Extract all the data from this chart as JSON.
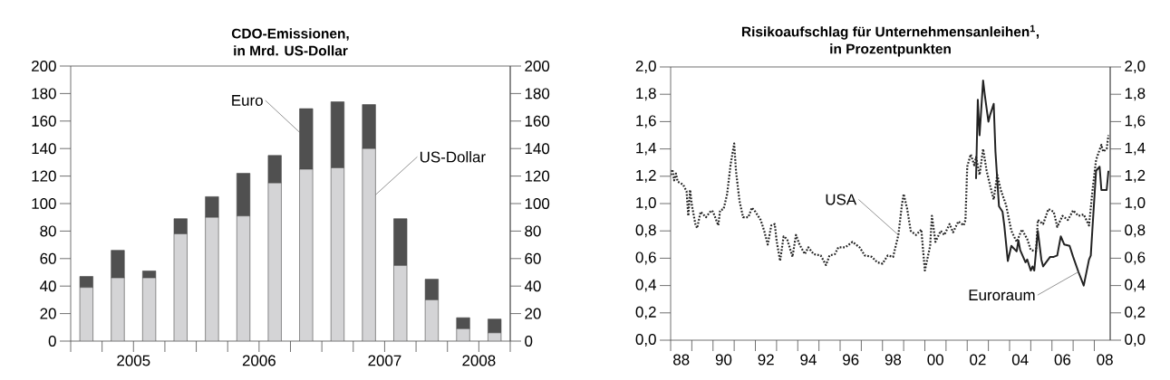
{
  "chart_data": [
    {
      "type": "bar",
      "title": "CDO-Emissionen,",
      "subtitle": "in Mrd. US-Dollar",
      "stacked": true,
      "x": [
        2005.125,
        2005.375,
        2005.625,
        2005.875,
        2006.125,
        2006.375,
        2006.625,
        2006.875,
        2007.125,
        2007.375,
        2007.625,
        2007.875,
        2008.125,
        2008.375
      ],
      "xlim": [
        2005,
        2008.5
      ],
      "xticks": [
        {
          "value": 2005,
          "label": null
        },
        {
          "value": 2005.25,
          "label": null
        },
        {
          "value": 2005.5,
          "label": "2005"
        },
        {
          "value": 2005.75,
          "label": null
        },
        {
          "value": 2006,
          "label": null
        },
        {
          "value": 2006.25,
          "label": null
        },
        {
          "value": 2006.5,
          "label": "2006"
        },
        {
          "value": 2006.75,
          "label": null
        },
        {
          "value": 2007,
          "label": null
        },
        {
          "value": 2007.25,
          "label": null
        },
        {
          "value": 2007.5,
          "label": "2007"
        },
        {
          "value": 2007.75,
          "label": null
        },
        {
          "value": 2008,
          "label": null
        },
        {
          "value": 2008.25,
          "label": "2008"
        },
        {
          "value": 2008.5,
          "label": null
        }
      ],
      "ylim": [
        0,
        200
      ],
      "yticks": [
        0,
        20,
        40,
        60,
        80,
        100,
        120,
        140,
        160,
        180,
        200
      ],
      "y2lim": [
        0,
        200
      ],
      "y2ticks": [
        0,
        20,
        40,
        60,
        80,
        100,
        120,
        140,
        160,
        180,
        200
      ],
      "series": [
        {
          "name": "US-Dollar",
          "color": "#d4d4d6",
          "values": [
            39,
            46,
            46,
            78,
            90,
            91,
            115,
            125,
            126,
            140,
            55,
            30,
            9,
            6
          ]
        },
        {
          "name": "Euro",
          "color": "#505050",
          "values": [
            8,
            20,
            5,
            11,
            15,
            31,
            20,
            44,
            48,
            32,
            34,
            15,
            8,
            10
          ]
        }
      ]
    },
    {
      "type": "line",
      "title": "Risikoaufschlag für Unternehmensanleihen$^{1}$,",
      "subtitle": "in Prozentpunkten",
      "xlim": [
        "1988-01",
        "2008-10"
      ],
      "xticks": [
        {
          "value": "1988-01",
          "label": null
        },
        {
          "value": "1988-07",
          "label": "88"
        },
        {
          "value": "1989-01",
          "label": null
        },
        {
          "value": "1990-01",
          "label": null
        },
        {
          "value": "1990-07",
          "label": "90"
        },
        {
          "value": "1991-01",
          "label": null
        },
        {
          "value": "1992-01",
          "label": null
        },
        {
          "value": "1992-07",
          "label": "92"
        },
        {
          "value": "1993-01",
          "label": null
        },
        {
          "value": "1994-01",
          "label": null
        },
        {
          "value": "1994-07",
          "label": "94"
        },
        {
          "value": "1995-01",
          "label": null
        },
        {
          "value": "1996-01",
          "label": null
        },
        {
          "value": "1996-07",
          "label": "96"
        },
        {
          "value": "1997-01",
          "label": null
        },
        {
          "value": "1998-01",
          "label": null
        },
        {
          "value": "1998-07",
          "label": "98"
        },
        {
          "value": "1999-01",
          "label": null
        },
        {
          "value": "2000-01",
          "label": null
        },
        {
          "value": "2000-07",
          "label": "00"
        },
        {
          "value": "2001-01",
          "label": null
        },
        {
          "value": "2002-01",
          "label": null
        },
        {
          "value": "2002-07",
          "label": "02"
        },
        {
          "value": "2003-01",
          "label": null
        },
        {
          "value": "2004-01",
          "label": null
        },
        {
          "value": "2004-07",
          "label": "04"
        },
        {
          "value": "2005-01",
          "label": null
        },
        {
          "value": "2006-01",
          "label": null
        },
        {
          "value": "2006-07",
          "label": "06"
        },
        {
          "value": "2007-01",
          "label": null
        },
        {
          "value": "2008-01",
          "label": null
        },
        {
          "value": "2008-07",
          "label": "08"
        }
      ],
      "ylim": [
        0,
        2
      ],
      "yticks": [
        {
          "value": 0,
          "label": "0,0"
        },
        {
          "value": 0.2,
          "label": "0,2"
        },
        {
          "value": 0.4,
          "label": "0,4"
        },
        {
          "value": 0.6,
          "label": "0,6"
        },
        {
          "value": 0.8,
          "label": "0,8"
        },
        {
          "value": 1.0,
          "label": "1,0"
        },
        {
          "value": 1.2,
          "label": "1,2"
        },
        {
          "value": 1.4,
          "label": "1,4"
        },
        {
          "value": 1.6,
          "label": "1,6"
        },
        {
          "value": 1.8,
          "label": "1,8"
        },
        {
          "value": 2.0,
          "label": "2,0"
        }
      ],
      "y2lim": [
        0,
        2
      ],
      "y2ticks": [
        {
          "value": 0,
          "label": "0,0"
        },
        {
          "value": 0.2,
          "label": "0,2"
        },
        {
          "value": 0.4,
          "label": "0,4"
        },
        {
          "value": 0.6,
          "label": "0,6"
        },
        {
          "value": 0.8,
          "label": "0,8"
        },
        {
          "value": 1.0,
          "label": "1,0"
        },
        {
          "value": 1.2,
          "label": "1,2"
        },
        {
          "value": 1.4,
          "label": "1,4"
        },
        {
          "value": 1.6,
          "label": "1,6"
        },
        {
          "value": 1.8,
          "label": "1,8"
        },
        {
          "value": 2.0,
          "label": "2,0"
        }
      ],
      "series": [
        {
          "name": "USA",
          "color": "#222222",
          "line_style": "dotted",
          "x": [
            "1988-01",
            "1988-02",
            "1988-03",
            "1988-04",
            "1988-05",
            "1988-08",
            "1988-10",
            "1988-11",
            "1988-12",
            "1989-01",
            "1989-03",
            "1989-04",
            "1989-06",
            "1989-09",
            "1989-12",
            "1990-01",
            "1990-04",
            "1990-05",
            "1990-07",
            "1990-09",
            "1990-11",
            "1991-01",
            "1991-02",
            "1991-04",
            "1991-06",
            "1991-09",
            "1991-11",
            "1992-01",
            "1992-04",
            "1992-06",
            "1992-08",
            "1992-10",
            "1992-12",
            "1993-01",
            "1993-03",
            "1993-05",
            "1993-07",
            "1993-10",
            "1993-12",
            "1994-02",
            "1994-05",
            "1994-07",
            "1994-10",
            "1995-02",
            "1995-05",
            "1995-07",
            "1995-10",
            "1995-12",
            "1996-04",
            "1996-08",
            "1996-12",
            "1997-03",
            "1997-07",
            "1997-10",
            "1998-01",
            "1998-04",
            "1998-07",
            "1998-10",
            "1998-12",
            "1999-01",
            "1999-03",
            "1999-05",
            "1999-08",
            "1999-11",
            "2000-01",
            "2000-04",
            "2000-05",
            "2000-07",
            "2000-10",
            "2000-12",
            "2001-03",
            "2001-05",
            "2001-08",
            "2001-11",
            "2001-12",
            "2002-01",
            "2002-03",
            "2002-05",
            "2002-06",
            "2002-08",
            "2002-10",
            "2002-12",
            "2003-02",
            "2003-04",
            "2003-06",
            "2003-08",
            "2003-11",
            "2004-02",
            "2004-05",
            "2004-08",
            "2004-11",
            "2005-01",
            "2005-04",
            "2005-05",
            "2005-08",
            "2005-11",
            "2006-02",
            "2006-04",
            "2006-07",
            "2006-10",
            "2007-01",
            "2007-04",
            "2007-07",
            "2007-10",
            "2007-12",
            "2008-02",
            "2008-05",
            "2008-06",
            "2008-08",
            "2008-09"
          ],
          "values": [
            1.21,
            1.25,
            1.17,
            1.22,
            1.16,
            1.14,
            1.09,
            0.91,
            1.1,
            0.99,
            0.85,
            0.82,
            0.94,
            0.9,
            0.95,
            0.94,
            0.84,
            0.95,
            0.96,
            1.07,
            1.29,
            1.44,
            1.24,
            1.02,
            0.9,
            0.9,
            0.97,
            0.94,
            0.88,
            0.8,
            0.7,
            0.84,
            0.85,
            0.73,
            0.58,
            0.76,
            0.74,
            0.61,
            0.77,
            0.7,
            0.63,
            0.68,
            0.63,
            0.62,
            0.55,
            0.62,
            0.63,
            0.68,
            0.68,
            0.72,
            0.68,
            0.62,
            0.61,
            0.57,
            0.56,
            0.62,
            0.61,
            0.77,
            0.99,
            1.07,
            0.96,
            0.8,
            0.77,
            0.81,
            0.51,
            0.69,
            0.91,
            0.72,
            0.8,
            0.77,
            0.85,
            0.79,
            0.87,
            0.84,
            0.88,
            1.27,
            1.36,
            1.28,
            1.34,
            1.21,
            1.4,
            1.24,
            1.13,
            1.03,
            1.21,
            1.1,
            0.99,
            0.8,
            0.72,
            0.81,
            0.74,
            0.66,
            0.65,
            0.88,
            0.85,
            0.96,
            0.94,
            0.83,
            0.91,
            0.88,
            0.95,
            0.91,
            0.92,
            0.84,
            1.1,
            1.32,
            1.43,
            1.38,
            1.4,
            1.5
          ]
        },
        {
          "name": "Euroraum",
          "color": "#222222",
          "line_style": "solid",
          "x": [
            "2002-06",
            "2002-07",
            "2002-08",
            "2002-10",
            "2002-11",
            "2003-01",
            "2003-02",
            "2003-04",
            "2003-05",
            "2003-07",
            "2003-09",
            "2003-10",
            "2003-12",
            "2004-02",
            "2004-05",
            "2004-06",
            "2004-07",
            "2004-10",
            "2004-11",
            "2005-01",
            "2005-02",
            "2005-03",
            "2005-05",
            "2005-07",
            "2005-08",
            "2005-12",
            "2006-02",
            "2006-04",
            "2006-06",
            "2006-08",
            "2006-11",
            "2007-01",
            "2007-04",
            "2007-07",
            "2007-10",
            "2007-11",
            "2007-12",
            "2008-02",
            "2008-04",
            "2008-05",
            "2008-08",
            "2008-09"
          ],
          "values": [
            1.18,
            1.76,
            1.5,
            1.9,
            1.79,
            1.6,
            1.65,
            1.73,
            1.38,
            0.98,
            0.94,
            0.84,
            0.58,
            0.69,
            0.65,
            0.73,
            0.66,
            0.57,
            0.59,
            0.51,
            0.54,
            0.51,
            0.8,
            0.59,
            0.54,
            0.61,
            0.61,
            0.62,
            0.76,
            0.7,
            0.69,
            0.61,
            0.5,
            0.4,
            0.59,
            0.62,
            0.83,
            1.24,
            1.27,
            1.1,
            1.1,
            1.24
          ]
        }
      ]
    }
  ]
}
